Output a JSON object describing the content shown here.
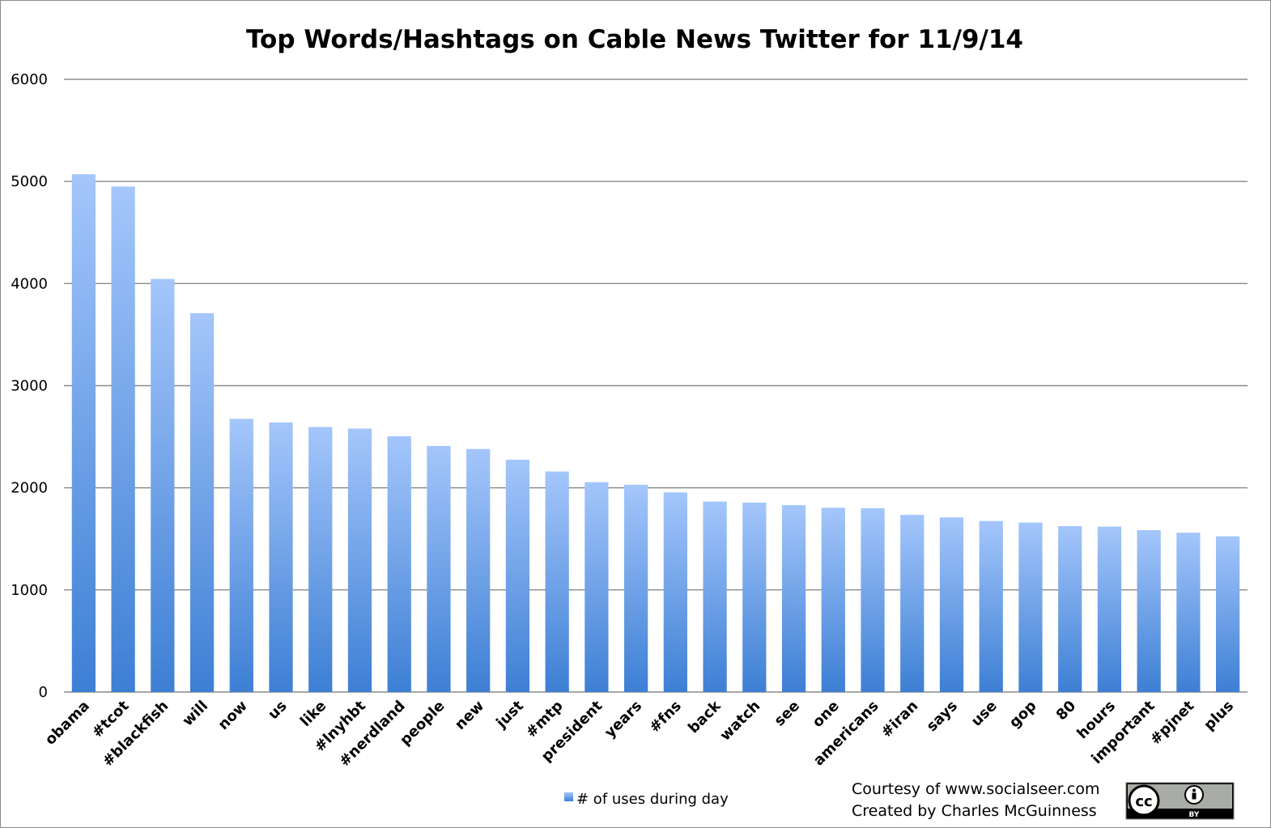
{
  "chart_data": {
    "type": "bar",
    "title": "Top Words/Hashtags on Cable News Twitter for 11/9/14",
    "xlabel": "",
    "ylabel": "",
    "ylim": [
      0,
      6000
    ],
    "yticks": [
      0,
      1000,
      2000,
      3000,
      4000,
      5000,
      6000
    ],
    "grid": true,
    "legend_position": "bottom",
    "bar_color_top": "#a4c6fb",
    "bar_color_bottom": "#3d7fd4",
    "categories": [
      "obama",
      "#tcot",
      "#blackfish",
      "will",
      "now",
      "us",
      "like",
      "#lnyhbt",
      "#nerdland",
      "people",
      "new",
      "just",
      "#mtp",
      "president",
      "years",
      "#fns",
      "back",
      "watch",
      "see",
      "one",
      "americans",
      "#iran",
      "says",
      "use",
      "gop",
      "80",
      "hours",
      "important",
      "#pjnet",
      "plus"
    ],
    "series": [
      {
        "name": "# of uses during day",
        "values": [
          5070,
          4950,
          4045,
          3710,
          2675,
          2640,
          2595,
          2580,
          2505,
          2410,
          2380,
          2275,
          2160,
          2055,
          2030,
          1955,
          1865,
          1855,
          1830,
          1805,
          1800,
          1735,
          1710,
          1675,
          1660,
          1625,
          1620,
          1585,
          1560,
          1525
        ]
      }
    ]
  },
  "credits": {
    "line1": "Courtesy of www.socialseer.com",
    "line2": "Created by Charles McGuinness"
  },
  "license_badge": {
    "icon": "cc-by-icon",
    "cc_text": "cc",
    "by_text": "BY"
  }
}
